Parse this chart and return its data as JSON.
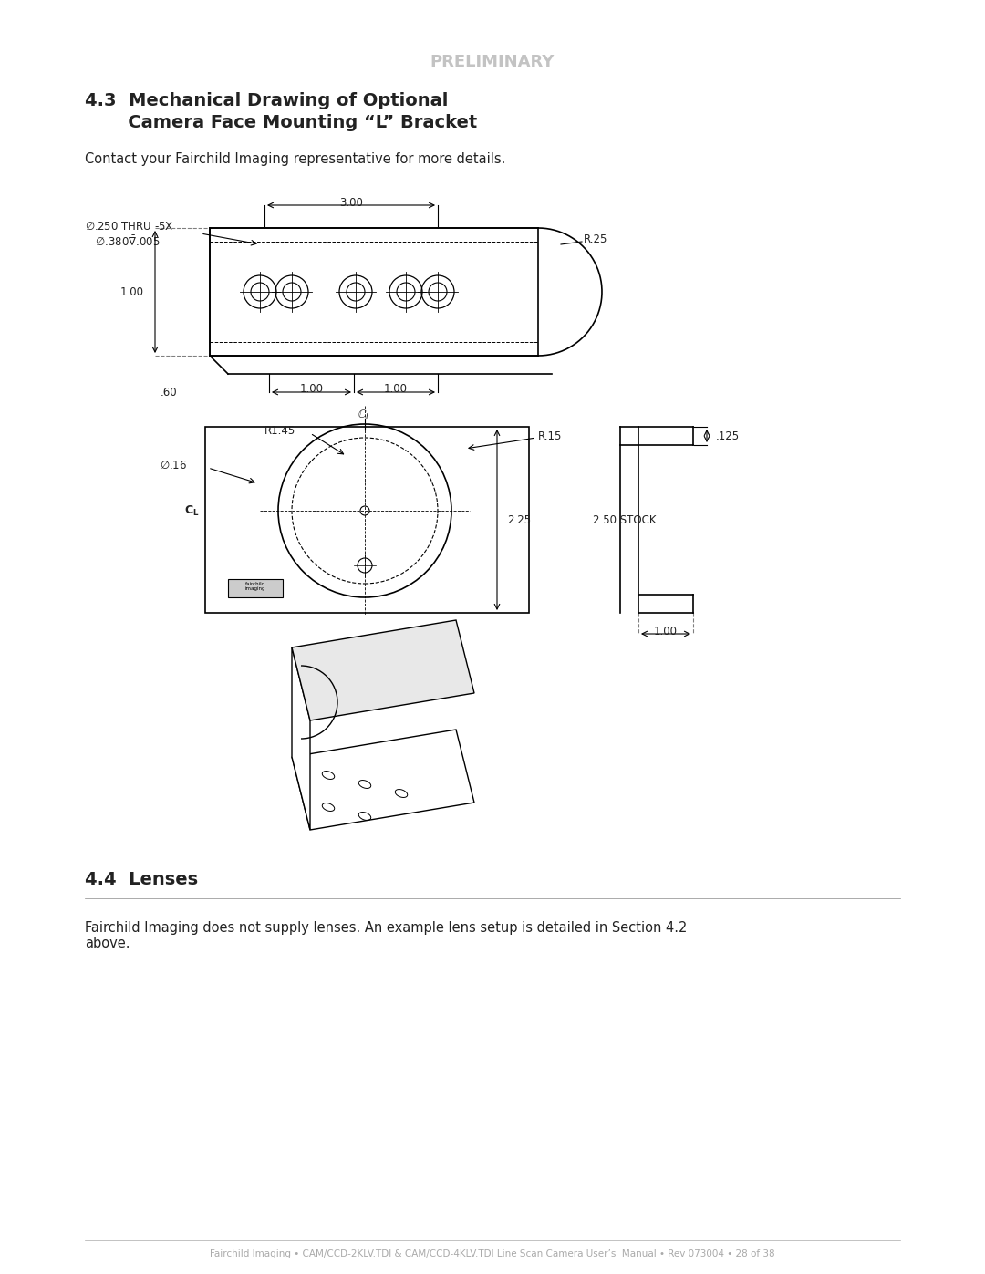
{
  "page_bg": "#ffffff",
  "preliminary_text": "PRELIMINARY",
  "preliminary_color": "#aaaaaa",
  "section_title_line1": "4.3  Mechanical Drawing of Optional",
  "section_title_line2": "       Camera Face Mounting “L” Bracket",
  "contact_text": "Contact your Fairchild Imaging representative for more details.",
  "section2_title": "4.4  Lenses",
  "lenses_text": "Fairchild Imaging does not supply lenses. An example lens setup is detailed in Section 4.2\nabove.",
  "footer_text": "Fairchild Imaging • CAM/CCD-2KLV.TDI & CAM/CCD-4KLV.TDI Line Scan Camera User’s  Manual • Rev 073004 • 28 of 38",
  "text_color": "#222222",
  "footer_color": "#aaaaaa"
}
